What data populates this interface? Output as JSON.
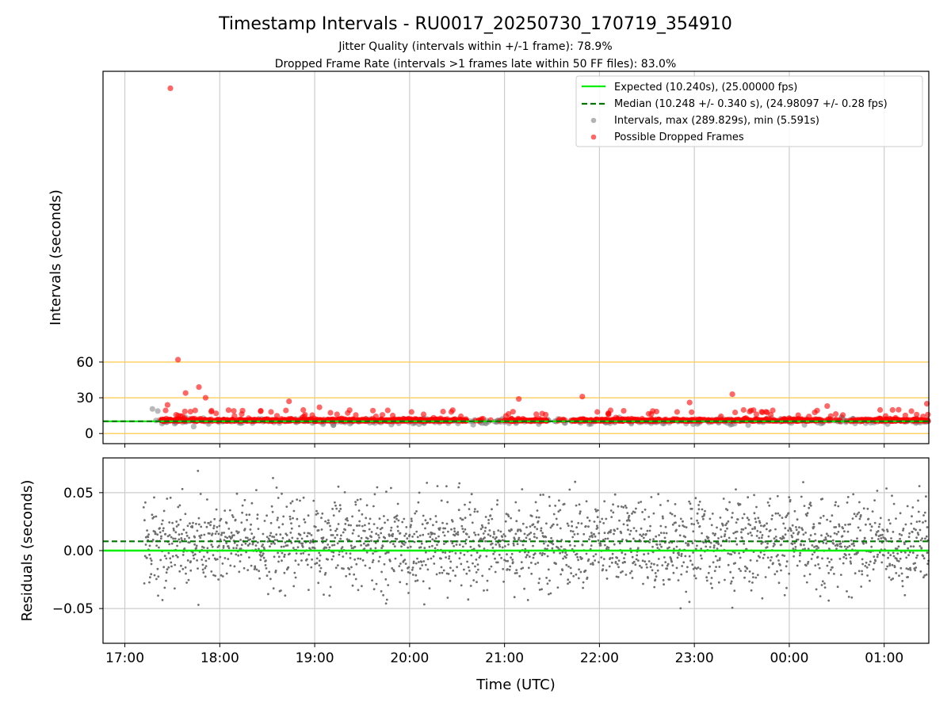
{
  "chart_data": {
    "type": "scatter",
    "title": "Timestamp Intervals - RU0017_20250730_170719_354910",
    "subtitle_lines": [
      "Jitter Quality (intervals within +/-1 frame): 78.9%",
      "Dropped Frame Rate (intervals >1 frames late within 50 FF files): 83.0%"
    ],
    "xlabel": "Time (UTC)",
    "x_ticks": [
      "17:00",
      "18:00",
      "19:00",
      "20:00",
      "21:00",
      "22:00",
      "23:00",
      "00:00",
      "01:00"
    ],
    "x_tick_hours": [
      17,
      18,
      19,
      20,
      21,
      22,
      23,
      24,
      25
    ],
    "x_range_hours": [
      16.77,
      25.47
    ],
    "top_panel": {
      "ylabel": "Intervals (seconds)",
      "y_ticks": [
        0,
        30,
        60
      ],
      "ylim": [
        -8.5,
        304
      ],
      "reference_lines": [
        0,
        30,
        60
      ],
      "expected_interval": 10.24,
      "median_interval": 10.248,
      "outlier_points": [
        {
          "x": 17.48,
          "y": 289.8
        },
        {
          "x": 17.56,
          "y": 62
        },
        {
          "x": 17.64,
          "y": 34
        },
        {
          "x": 17.78,
          "y": 39
        },
        {
          "x": 17.85,
          "y": 30
        },
        {
          "x": 17.45,
          "y": 24
        },
        {
          "x": 18.73,
          "y": 27
        },
        {
          "x": 19.05,
          "y": 22
        },
        {
          "x": 21.15,
          "y": 29
        },
        {
          "x": 21.82,
          "y": 31
        },
        {
          "x": 22.95,
          "y": 26
        },
        {
          "x": 23.4,
          "y": 33
        },
        {
          "x": 24.4,
          "y": 23
        },
        {
          "x": 25.45,
          "y": 25
        }
      ]
    },
    "bottom_panel": {
      "ylabel": "Residuals (seconds)",
      "y_ticks": [
        "0.05",
        "0.00",
        "−0.05"
      ],
      "y_tick_values": [
        0.05,
        0.0,
        -0.05
      ],
      "ylim": [
        -0.08,
        0.08
      ],
      "expected_residual": 0.0,
      "median_residual": 0.008
    },
    "legend": {
      "position": "top-right",
      "entries": [
        {
          "label": "Expected (10.240s), (25.00000 fps)",
          "style": "solid-line",
          "color": "#00ee00"
        },
        {
          "label": "Median (10.248 +/- 0.340 s), (24.98097 +/- 0.28 fps)",
          "style": "dashed-line",
          "color": "#007700"
        },
        {
          "label": "Intervals, max (289.829s), min (5.591s)",
          "style": "marker",
          "color": "#808080"
        },
        {
          "label": "Possible Dropped Frames",
          "style": "marker",
          "color": "#ff0000"
        }
      ]
    },
    "colors": {
      "expected": "#00ee00",
      "median": "#007700",
      "intervals": "#808080",
      "dropped": "#ff0000",
      "reference": "#ffc94d",
      "grid": "#cccccc",
      "residual_points": "#6e6e6e"
    }
  }
}
